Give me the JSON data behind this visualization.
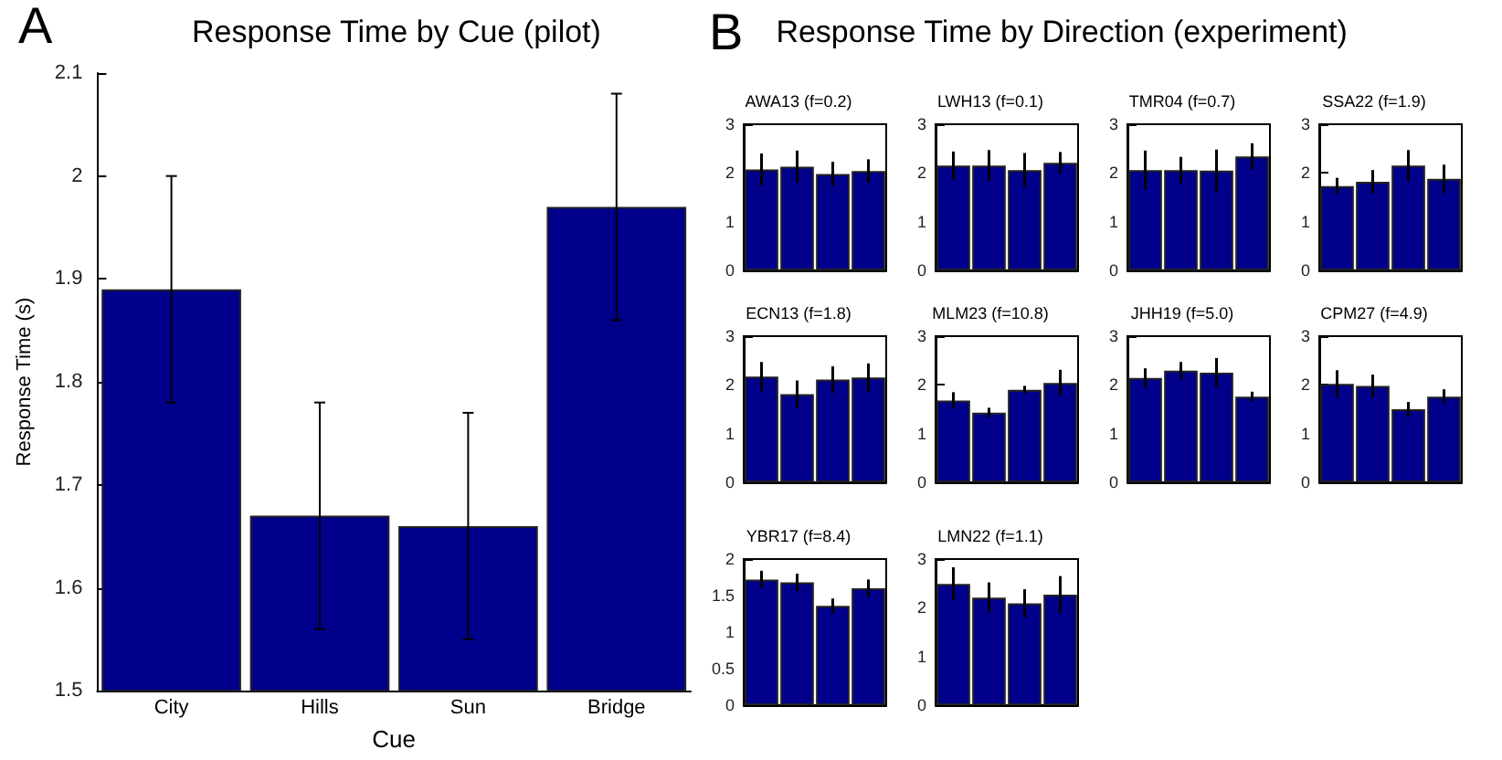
{
  "chart_data": [
    {
      "type": "bar",
      "title": "Response Time by Cue (pilot)",
      "annotations": [
        "A"
      ],
      "xlabel": "Cue",
      "ylabel": "Response Time (s)",
      "categories": [
        "City",
        "Hills",
        "Sun",
        "Bridge"
      ],
      "values": [
        1.89,
        1.67,
        1.66,
        1.97
      ],
      "errors": [
        0.11,
        0.11,
        0.11,
        0.11
      ],
      "color": "#00008b",
      "ylim": [
        1.5,
        2.1
      ],
      "yticks": [
        1.5,
        1.6,
        1.7,
        1.8,
        1.9,
        2,
        2.1
      ]
    },
    {
      "type": "other",
      "title": "Response Time by Direction (experiment)",
      "annotations": [
        "B"
      ]
    },
    {
      "type": "bar",
      "title": "AWA13 (f=0.2)",
      "categories": [
        null,
        null,
        null,
        null
      ],
      "values": [
        2.07,
        2.13,
        1.98,
        2.04
      ],
      "errors": [
        0.33,
        0.33,
        0.25,
        0.24
      ],
      "color": "#00008b",
      "ylim": [
        0,
        3
      ],
      "yticks": [
        0,
        1,
        2,
        3
      ],
      "tick_labels": "y"
    },
    {
      "type": "bar",
      "title": "LWH13 (f=0.1)",
      "categories": [
        null,
        null,
        null,
        null
      ],
      "values": [
        2.15,
        2.15,
        2.06,
        2.21
      ],
      "errors": [
        0.29,
        0.32,
        0.35,
        0.22
      ],
      "color": "#00008b",
      "ylim": [
        0,
        3
      ],
      "yticks": [
        0,
        1,
        2,
        3
      ],
      "tick_labels": "y"
    },
    {
      "type": "bar",
      "title": "TMR04 (f=0.7)",
      "categories": [
        null,
        null,
        null,
        null
      ],
      "values": [
        2.06,
        2.06,
        2.05,
        2.34
      ],
      "errors": [
        0.4,
        0.27,
        0.43,
        0.27
      ],
      "color": "#00008b",
      "ylim": [
        0,
        3
      ],
      "yticks": [
        0,
        1,
        2,
        3
      ],
      "tick_labels": "y"
    },
    {
      "type": "bar",
      "title": "SSA22 (f=1.9)",
      "categories": [
        null,
        null,
        null,
        null
      ],
      "values": [
        1.73,
        1.82,
        2.15,
        1.88
      ],
      "errors": [
        0.17,
        0.24,
        0.32,
        0.29
      ],
      "color": "#00008b",
      "ylim": [
        0,
        3
      ],
      "yticks": [
        0,
        1,
        2,
        3
      ],
      "tick_labels": "y"
    },
    {
      "type": "bar",
      "title": "ECN13 (f=1.8)",
      "categories": [
        null,
        null,
        null,
        null
      ],
      "values": [
        2.17,
        1.81,
        2.11,
        2.15
      ],
      "errors": [
        0.3,
        0.28,
        0.27,
        0.29
      ],
      "color": "#00008b",
      "ylim": [
        0,
        3
      ],
      "yticks": [
        0,
        1,
        2,
        3
      ],
      "tick_labels": "y"
    },
    {
      "type": "bar",
      "title": "MLM23 (f=10.8)",
      "categories": [
        null,
        null,
        null,
        null
      ],
      "values": [
        1.68,
        1.43,
        1.9,
        2.04
      ],
      "errors": [
        0.17,
        0.1,
        0.08,
        0.27
      ],
      "color": "#00008b",
      "ylim": [
        0,
        3
      ],
      "yticks": [
        0,
        1,
        2,
        3
      ],
      "tick_labels": "y"
    },
    {
      "type": "bar",
      "title": "JHH19 (f=5.0)",
      "categories": [
        null,
        null,
        null,
        null
      ],
      "values": [
        2.14,
        2.29,
        2.25,
        1.76
      ],
      "errors": [
        0.2,
        0.18,
        0.3,
        0.1
      ],
      "color": "#00008b",
      "ylim": [
        0,
        3
      ],
      "yticks": [
        0,
        1,
        2,
        3
      ],
      "tick_labels": "y"
    },
    {
      "type": "bar",
      "title": "CPM27 (f=4.9)",
      "categories": [
        null,
        null,
        null,
        null
      ],
      "values": [
        2.02,
        1.98,
        1.5,
        1.76
      ],
      "errors": [
        0.28,
        0.23,
        0.15,
        0.15
      ],
      "color": "#00008b",
      "ylim": [
        0,
        3
      ],
      "yticks": [
        0,
        1,
        2,
        3
      ],
      "tick_labels": "y"
    },
    {
      "type": "bar",
      "title": "YBR17 (f=8.4)",
      "categories": [
        null,
        null,
        null,
        null
      ],
      "values": [
        1.72,
        1.68,
        1.36,
        1.6
      ],
      "errors": [
        0.12,
        0.12,
        0.1,
        0.12
      ],
      "color": "#00008b",
      "ylim": [
        0,
        2
      ],
      "yticks": [
        0,
        0.5,
        1,
        1.5,
        2
      ],
      "tick_labels": "y"
    },
    {
      "type": "bar",
      "title": "LMN22 (f=1.1)",
      "categories": [
        null,
        null,
        null,
        null
      ],
      "values": [
        2.49,
        2.21,
        2.09,
        2.27
      ],
      "errors": [
        0.34,
        0.31,
        0.29,
        0.38
      ],
      "color": "#00008b",
      "ylim": [
        0,
        3
      ],
      "yticks": [
        0,
        1,
        2,
        3
      ],
      "tick_labels": "y"
    }
  ]
}
